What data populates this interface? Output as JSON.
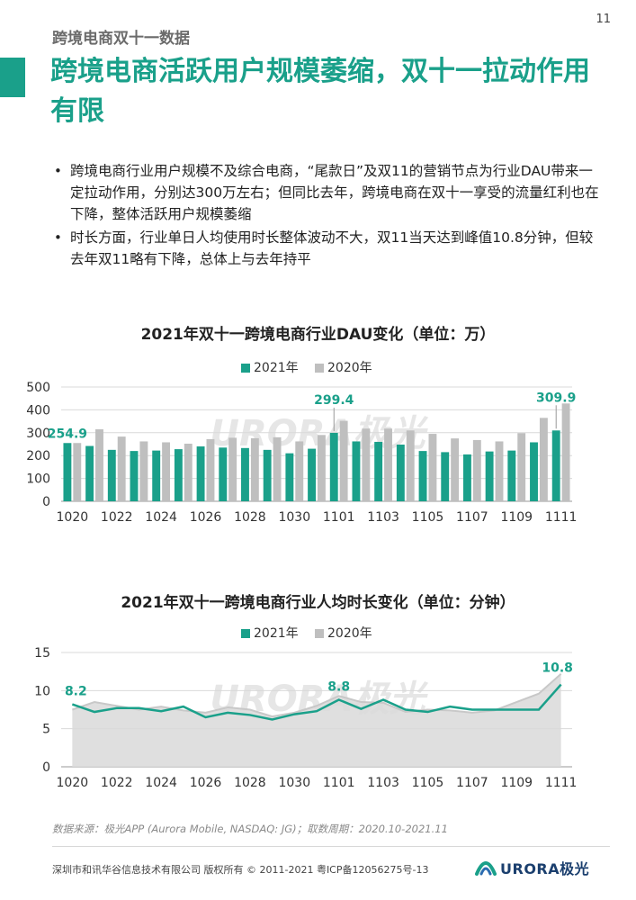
{
  "page_number": "11",
  "section_label": "跨境电商双十一数据",
  "headline": "跨境电商活跃用户规模萎缩，双十一拉动作用有限",
  "bullets": [
    "跨境电商行业用户规模不及综合电商，“尾款日”及双11的营销节点为行业DAU带来一定拉动作用，分别达300万左右；但同比去年，跨境电商在双十一享受的流量红利也在下降，整体活跃用户规模萎缩",
    "时长方面，行业单日人均使用时长整体波动不大，双11当天达到峰值10.8分钟，但较去年双11略有下降，总体上与去年持平"
  ],
  "colors": {
    "series_2021": "#1aa08a",
    "series_2020": "#bfbfbf",
    "accent": "#1aa08a"
  },
  "watermark": "URORA极光",
  "chart_data": [
    {
      "type": "bar",
      "title": "2021年双十一跨境电商行业DAU变化（单位：万）",
      "categories": [
        "1020",
        "1021",
        "1022",
        "1023",
        "1024",
        "1025",
        "1026",
        "1027",
        "1028",
        "1029",
        "1030",
        "1031",
        "1101",
        "1102",
        "1103",
        "1104",
        "1105",
        "1106",
        "1107",
        "1108",
        "1109",
        "1110",
        "1111"
      ],
      "x_tick_labels": [
        "1020",
        "1022",
        "1024",
        "1026",
        "1028",
        "1030",
        "1101",
        "1103",
        "1105",
        "1107",
        "1109",
        "1111"
      ],
      "series": [
        {
          "name": "2021年",
          "values": [
            254.9,
            242,
            225,
            220,
            222,
            228,
            240,
            235,
            233,
            225,
            210,
            230,
            299.4,
            262,
            260,
            248,
            220,
            215,
            205,
            218,
            222,
            258,
            309.9
          ]
        },
        {
          "name": "2020年",
          "values": [
            255,
            315,
            283,
            262,
            258,
            252,
            272,
            278,
            276,
            280,
            262,
            290,
            352,
            318,
            318,
            310,
            295,
            275,
            268,
            262,
            298,
            365,
            428
          ]
        }
      ],
      "ylim": [
        0,
        500
      ],
      "y_ticks": [
        "0",
        "100",
        "200",
        "300",
        "400",
        "500"
      ],
      "data_labels": [
        {
          "index": 0,
          "text": "254.9"
        },
        {
          "index": 12,
          "text": "299.4"
        },
        {
          "index": 22,
          "text": "309.9"
        }
      ],
      "grid": true,
      "legend": "top"
    },
    {
      "type": "area",
      "title": "2021年双十一跨境电商行业人均时长变化（单位：分钟）",
      "categories": [
        "1020",
        "1021",
        "1022",
        "1023",
        "1024",
        "1025",
        "1026",
        "1027",
        "1028",
        "1029",
        "1030",
        "1031",
        "1101",
        "1102",
        "1103",
        "1104",
        "1105",
        "1106",
        "1107",
        "1108",
        "1109",
        "1110",
        "1111"
      ],
      "x_tick_labels": [
        "1020",
        "1022",
        "1024",
        "1026",
        "1028",
        "1030",
        "1101",
        "1103",
        "1105",
        "1107",
        "1109",
        "1111"
      ],
      "series": [
        {
          "name": "2021年",
          "values": [
            8.2,
            7.2,
            7.7,
            7.7,
            7.3,
            7.9,
            6.5,
            7.1,
            6.8,
            6.2,
            6.9,
            7.3,
            8.8,
            7.6,
            8.8,
            7.5,
            7.2,
            7.9,
            7.5,
            7.5,
            7.5,
            7.5,
            10.8
          ]
        },
        {
          "name": "2020年",
          "values": [
            7.5,
            8.5,
            8.0,
            7.5,
            7.9,
            7.4,
            7.1,
            7.8,
            7.5,
            6.6,
            7.1,
            8.0,
            9.3,
            8.5,
            8.4,
            7.2,
            7.5,
            7.4,
            7.1,
            7.4,
            8.5,
            9.6,
            12.2
          ]
        }
      ],
      "ylim": [
        0,
        15
      ],
      "y_ticks": [
        "0",
        "5",
        "10",
        "15"
      ],
      "data_labels": [
        {
          "index": 0,
          "text": "8.2"
        },
        {
          "index": 12,
          "text": "8.8"
        },
        {
          "index": 22,
          "text": "10.8"
        }
      ],
      "grid": true,
      "legend": "top"
    }
  ],
  "source_note": "数据来源：极光APP (Aurora Mobile, NASDAQ: JG)；取数周期：2020.10-2021.11",
  "copyright": "深圳市和讯华谷信息技术有限公司 版权所有 © 2011-2021 粤ICP备12056275号-13",
  "brand_logo_text": "URORA极光"
}
